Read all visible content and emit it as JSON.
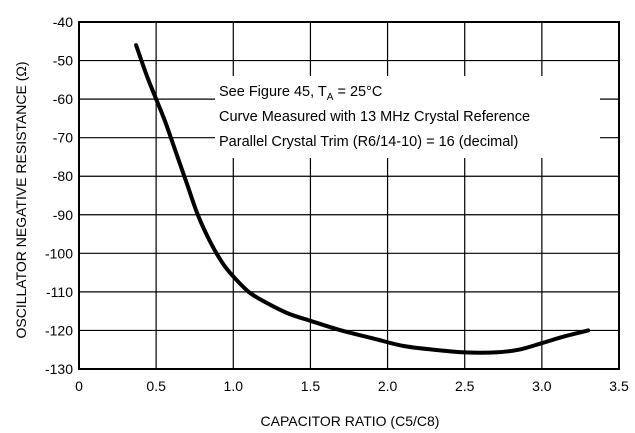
{
  "chart_data": {
    "type": "line",
    "title": "",
    "xlabel": "CAPACITOR RATIO (C5/C8)",
    "ylabel": "OSCILLATOR NEGATIVE RESISTANCE (Ω)",
    "xlim": [
      0,
      3.5
    ],
    "ylim": [
      -130,
      -40
    ],
    "xticks": [
      "0",
      "0.5",
      "1.0",
      "1.5",
      "2.0",
      "2.5",
      "3.0",
      "3.5"
    ],
    "yticks": [
      "-40",
      "-50",
      "-60",
      "-70",
      "-80",
      "-90",
      "-100",
      "-110",
      "-120",
      "-130"
    ],
    "grid": true,
    "annotations": {
      "line1_pre": "See Figure 45, T",
      "line1_sub": "A",
      "line1_post": " = 25°C",
      "line2": "Curve Measured with 13 MHz Crystal Reference",
      "line3": "Parallel Crystal Trim (R6/14-10) = 16 (decimal)"
    },
    "series": [
      {
        "x": [
          0.37,
          0.44,
          0.5,
          0.56,
          0.63,
          0.7,
          0.77,
          0.85,
          0.93,
          1.0,
          1.1,
          1.2,
          1.35,
          1.5,
          1.7,
          1.9,
          2.1,
          2.3,
          2.5,
          2.7,
          2.85,
          3.0,
          3.15,
          3.3
        ],
        "y": [
          -46,
          -54,
          -60,
          -66,
          -74,
          -82,
          -90,
          -97,
          -102.5,
          -106,
          -110,
          -112.5,
          -115.5,
          -117.5,
          -120,
          -122,
          -124,
          -125,
          -125.7,
          -125.7,
          -125,
          -123.3,
          -121.5,
          -120
        ]
      }
    ]
  }
}
